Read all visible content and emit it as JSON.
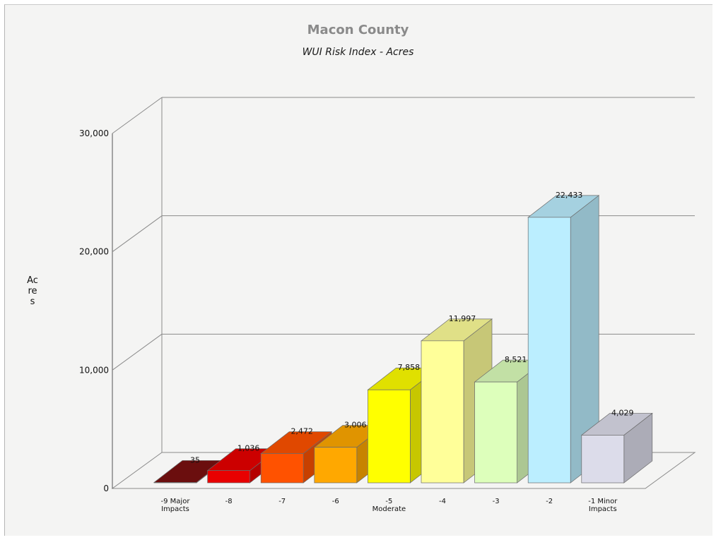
{
  "chart_data": {
    "type": "bar",
    "title": "Macon County",
    "subtitle": "WUI Risk Index - Acres",
    "xlabel": "",
    "ylabel": "Acres",
    "ylim": [
      0,
      30000
    ],
    "yticks": [
      "0",
      "10,000",
      "20,000",
      "30,000"
    ],
    "grid": true,
    "categories": [
      [
        "-9 Major",
        "Impacts"
      ],
      [
        "-8"
      ],
      [
        "-7"
      ],
      [
        "-6"
      ],
      [
        "-5",
        "Moderate"
      ],
      [
        "-4"
      ],
      [
        "-3"
      ],
      [
        "-2"
      ],
      [
        "-1 Minor",
        "Impacts"
      ]
    ],
    "values": [
      35,
      1036,
      2472,
      3006,
      7858,
      11997,
      8521,
      22433,
      4029
    ],
    "value_labels": [
      "35",
      "1,036",
      "2,472",
      "3,006",
      "7,858",
      "11,997",
      "8,521",
      "22,433",
      "4,029"
    ],
    "colors": [
      "#7a1010",
      "#e80000",
      "#ff5200",
      "#ffa800",
      "#ffff00",
      "#ffff99",
      "#ddffbb",
      "#bbeeff",
      "#dcdcea"
    ]
  }
}
